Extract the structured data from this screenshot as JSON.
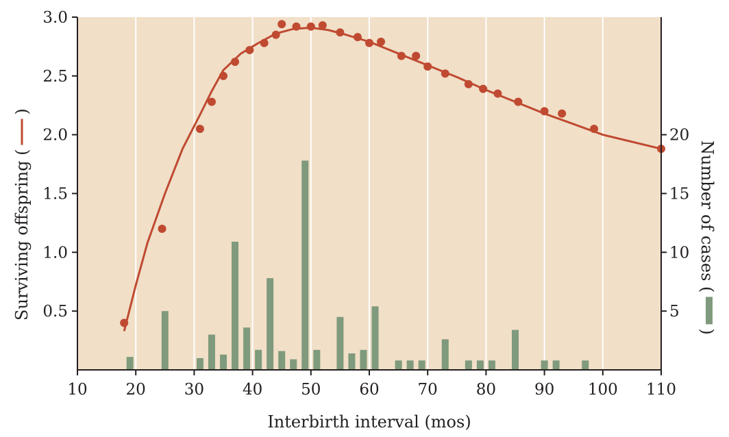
{
  "chart_data": {
    "type": "line+bar",
    "xlabel": "Interbirth interval (mos)",
    "ylabel_left": "Surviving offspring (",
    "ylabel_left_symbol": ")",
    "ylabel_right": "Number of cases (",
    "ylabel_right_symbol": ")",
    "x_ticks": [
      "10",
      "20",
      "30",
      "40",
      "50",
      "60",
      "70",
      "80",
      "90",
      "100",
      "110"
    ],
    "y_left_ticks": [
      "0.5",
      "1.0",
      "1.5",
      "2.0",
      "2.5",
      "3.0"
    ],
    "y_right_ticks": [
      "5",
      "10",
      "15",
      "20"
    ],
    "xlim": [
      10,
      110
    ],
    "ylim_left": [
      0,
      3.0
    ],
    "ylim_right": [
      0,
      30
    ],
    "grid": "vertical",
    "colors": {
      "line": "#bf4a31",
      "bars": "#7f9a7c",
      "background": "#f1dfc8"
    },
    "offspring_points": [
      [
        18,
        0.4
      ],
      [
        24.5,
        1.2
      ],
      [
        31,
        2.05
      ],
      [
        33,
        2.28
      ],
      [
        35,
        2.5
      ],
      [
        37,
        2.62
      ],
      [
        39.5,
        2.72
      ],
      [
        42,
        2.78
      ],
      [
        44,
        2.85
      ],
      [
        45,
        2.94
      ],
      [
        47.5,
        2.92
      ],
      [
        50,
        2.92
      ],
      [
        52,
        2.93
      ],
      [
        55,
        2.87
      ],
      [
        58,
        2.83
      ],
      [
        60,
        2.78
      ],
      [
        62,
        2.79
      ],
      [
        65.5,
        2.67
      ],
      [
        68,
        2.67
      ],
      [
        70,
        2.58
      ],
      [
        73,
        2.52
      ],
      [
        77,
        2.43
      ],
      [
        79.5,
        2.39
      ],
      [
        82,
        2.35
      ],
      [
        85.5,
        2.28
      ],
      [
        90,
        2.2
      ],
      [
        93,
        2.18
      ],
      [
        98.5,
        2.05
      ],
      [
        110,
        1.88
      ]
    ],
    "offspring_curve": [
      [
        18,
        0.33
      ],
      [
        20,
        0.72
      ],
      [
        22,
        1.08
      ],
      [
        25,
        1.5
      ],
      [
        28,
        1.88
      ],
      [
        31,
        2.17
      ],
      [
        33,
        2.37
      ],
      [
        35,
        2.55
      ],
      [
        38,
        2.69
      ],
      [
        41,
        2.78
      ],
      [
        44,
        2.86
      ],
      [
        47,
        2.9
      ],
      [
        50,
        2.91
      ],
      [
        53,
        2.89
      ],
      [
        56,
        2.85
      ],
      [
        60,
        2.79
      ],
      [
        65,
        2.69
      ],
      [
        70,
        2.59
      ],
      [
        75,
        2.49
      ],
      [
        80,
        2.38
      ],
      [
        85,
        2.28
      ],
      [
        90,
        2.18
      ],
      [
        95,
        2.09
      ],
      [
        100,
        2.0
      ],
      [
        105,
        1.94
      ],
      [
        110,
        1.88
      ]
    ],
    "cases_bars": [
      [
        19,
        1.1
      ],
      [
        25,
        5.0
      ],
      [
        31,
        1.0
      ],
      [
        33,
        3.0
      ],
      [
        35,
        1.3
      ],
      [
        37,
        10.9
      ],
      [
        39,
        3.6
      ],
      [
        41,
        1.7
      ],
      [
        43,
        7.8
      ],
      [
        45,
        1.6
      ],
      [
        47,
        0.9
      ],
      [
        49,
        17.8
      ],
      [
        51,
        1.7
      ],
      [
        55,
        4.5
      ],
      [
        57,
        1.4
      ],
      [
        59,
        1.7
      ],
      [
        61,
        5.4
      ],
      [
        65,
        0.8
      ],
      [
        67,
        0.8
      ],
      [
        69,
        0.8
      ],
      [
        73,
        2.6
      ],
      [
        77,
        0.8
      ],
      [
        79,
        0.8
      ],
      [
        81,
        0.8
      ],
      [
        85,
        3.4
      ],
      [
        90,
        0.8
      ],
      [
        92,
        0.8
      ],
      [
        97,
        0.8
      ]
    ]
  }
}
